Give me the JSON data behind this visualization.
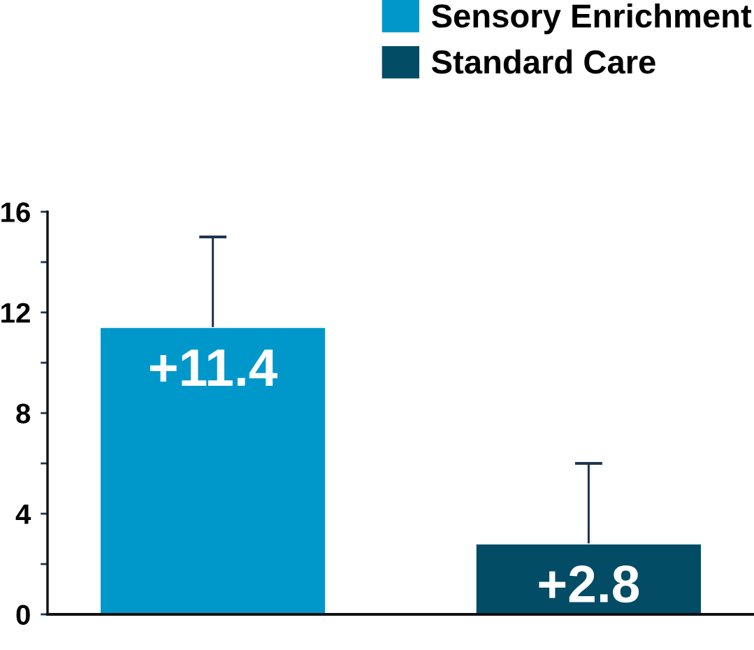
{
  "chart_data": {
    "type": "bar",
    "categories": [
      null,
      null
    ],
    "series": [
      {
        "name": "Sensory Enrichment",
        "color": "#0098cb",
        "values": [
          11.4,
          null
        ],
        "errors": [
          [
            11.4,
            15.0
          ],
          null
        ],
        "value_labels": [
          "+11.4",
          null
        ]
      },
      {
        "name": "Standard Care",
        "color": "#034c66",
        "values": [
          null,
          2.8
        ],
        "errors": [
          null,
          [
            2.8,
            6.0
          ]
        ],
        "value_labels": [
          null,
          "+2.8"
        ]
      }
    ],
    "ylim": [
      0,
      16
    ],
    "yticks": [
      0,
      {
        "value": 2,
        "label": null
      },
      4,
      {
        "value": 6,
        "label": null
      },
      8,
      {
        "value": 10,
        "label": null
      },
      12,
      {
        "value": 14,
        "label": null
      },
      16
    ],
    "tick_labels": "y",
    "grid": false,
    "legend": "top right"
  }
}
